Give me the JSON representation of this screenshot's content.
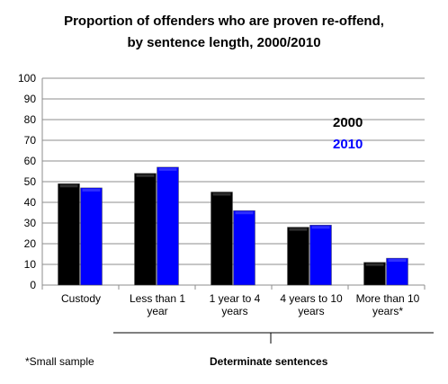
{
  "chart_data": {
    "type": "bar",
    "title_lines": [
      "Proportion of offenders who are proven re-offend,",
      "by sentence length, 2000/2010"
    ],
    "categories": [
      "Custody",
      "Less than 1 year",
      "1 year to 4 years",
      "4 years to 10 years",
      "More than 10 years*"
    ],
    "category_lines": [
      [
        "Custody"
      ],
      [
        "Less than 1",
        "year"
      ],
      [
        "1 year to 4",
        "years"
      ],
      [
        "4 years to 10",
        "years"
      ],
      [
        "More than 10",
        "years*"
      ]
    ],
    "series": [
      {
        "name": "2000",
        "color": "#000000",
        "values": [
          49,
          54,
          45,
          28,
          11
        ]
      },
      {
        "name": "2010",
        "color": "#0000ff",
        "values": [
          47,
          57,
          36,
          29,
          13
        ]
      }
    ],
    "ylim": [
      0,
      100
    ],
    "yticks": [
      0,
      10,
      20,
      30,
      40,
      50,
      60,
      70,
      80,
      90,
      100
    ],
    "grid": true,
    "legend_placement": "right",
    "footnote": "*Small sample",
    "group_label": "Determinate sentences"
  }
}
